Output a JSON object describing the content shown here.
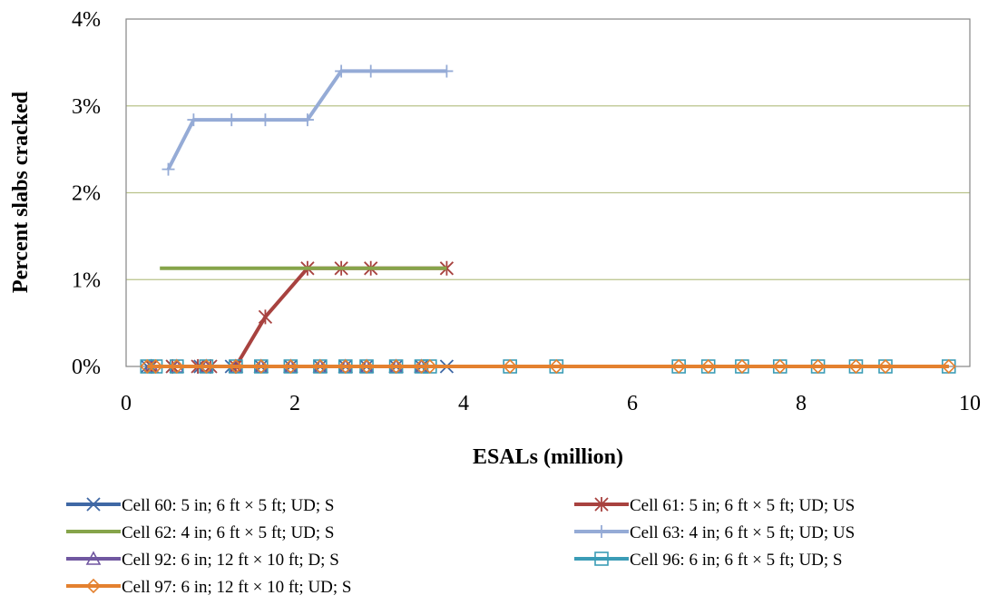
{
  "chart_data": {
    "type": "line",
    "title": "",
    "xlabel": "ESALs (million)",
    "ylabel": "Percent slabs cracked",
    "xlim": [
      0,
      10
    ],
    "ylim": [
      0,
      0.04
    ],
    "x_ticks": [
      "0",
      "2",
      "4",
      "6",
      "8",
      "10"
    ],
    "y_ticks": [
      "0%",
      "1%",
      "2%",
      "3%",
      "4%"
    ],
    "grid": "horizontal",
    "legend_position": "bottom",
    "series": [
      {
        "name": "Cell 60: 5 in; 6 ft × 5 ft; UD; S",
        "color": "#3f68a5",
        "marker": "x",
        "x": [
          0.25,
          0.55,
          0.88,
          1.25,
          1.6,
          1.95,
          2.3,
          2.6,
          2.85,
          3.2,
          3.5,
          3.8
        ],
        "y": [
          0,
          0,
          0,
          0,
          0,
          0,
          0,
          0,
          0,
          0,
          0,
          0
        ]
      },
      {
        "name": "Cell 61: 5 in; 6 ft × 5 ft; UD; US",
        "color": "#a8423f",
        "marker": "asterisk",
        "x": [
          0.3,
          0.55,
          0.85,
          1.0,
          1.3,
          1.65,
          2.15,
          2.55,
          2.9,
          3.8
        ],
        "y": [
          0,
          0,
          0,
          0,
          0,
          0.0057,
          0.0113,
          0.0113,
          0.0113,
          0.0113
        ]
      },
      {
        "name": "Cell 62: 4 in; 6 ft × 5 ft; UD; S",
        "color": "#86a44a",
        "marker": "none",
        "x": [
          0.4,
          3.8
        ],
        "y": [
          0.0113,
          0.0113
        ]
      },
      {
        "name": "Cell 63: 4 in; 6 ft × 5 ft; UD; US",
        "color": "#95abd6",
        "marker": "plus",
        "x": [
          0.5,
          0.8,
          1.25,
          1.65,
          2.15,
          2.55,
          2.9,
          3.8
        ],
        "y": [
          0.0227,
          0.0284,
          0.0284,
          0.0284,
          0.0284,
          0.034,
          0.034,
          0.034
        ]
      },
      {
        "name": "Cell 92: 6 in; 12 ft × 10 ft; D; S",
        "color": "#7057a0",
        "marker": "triangle",
        "x": [
          0.3,
          0.6,
          0.95,
          1.3,
          1.6,
          1.95,
          2.3,
          2.6,
          2.85,
          3.2,
          3.5
        ],
        "y": [
          0,
          0,
          0,
          0,
          0,
          0,
          0,
          0,
          0,
          0,
          0
        ]
      },
      {
        "name": "Cell 96: 6 in; 6 ft × 5 ft; UD; S",
        "color": "#3b9cb6",
        "marker": "square",
        "x": [
          0.25,
          0.35,
          0.6,
          0.95,
          1.3,
          1.6,
          1.95,
          2.3,
          2.6,
          2.85,
          3.2,
          3.5,
          3.6,
          4.55,
          5.1,
          6.55,
          6.9,
          7.3,
          7.75,
          8.2,
          8.65,
          9.0,
          9.75
        ],
        "y": [
          0,
          0,
          0,
          0,
          0,
          0,
          0,
          0,
          0,
          0,
          0,
          0,
          0,
          0,
          0,
          0,
          0,
          0,
          0,
          0,
          0,
          0,
          0
        ]
      },
      {
        "name": "Cell 97: 6 in; 12 ft × 10 ft; UD; S",
        "color": "#e4812f",
        "marker": "diamond",
        "x": [
          0.25,
          0.35,
          0.6,
          0.95,
          1.3,
          1.6,
          1.95,
          2.3,
          2.6,
          2.85,
          3.2,
          3.5,
          3.6,
          4.55,
          5.1,
          6.55,
          6.9,
          7.3,
          7.75,
          8.2,
          8.65,
          9.0,
          9.75
        ],
        "y": [
          0,
          0,
          0,
          0,
          0,
          0,
          0,
          0,
          0,
          0,
          0,
          0,
          0,
          0,
          0,
          0,
          0,
          0,
          0,
          0,
          0,
          0,
          0
        ]
      }
    ]
  }
}
